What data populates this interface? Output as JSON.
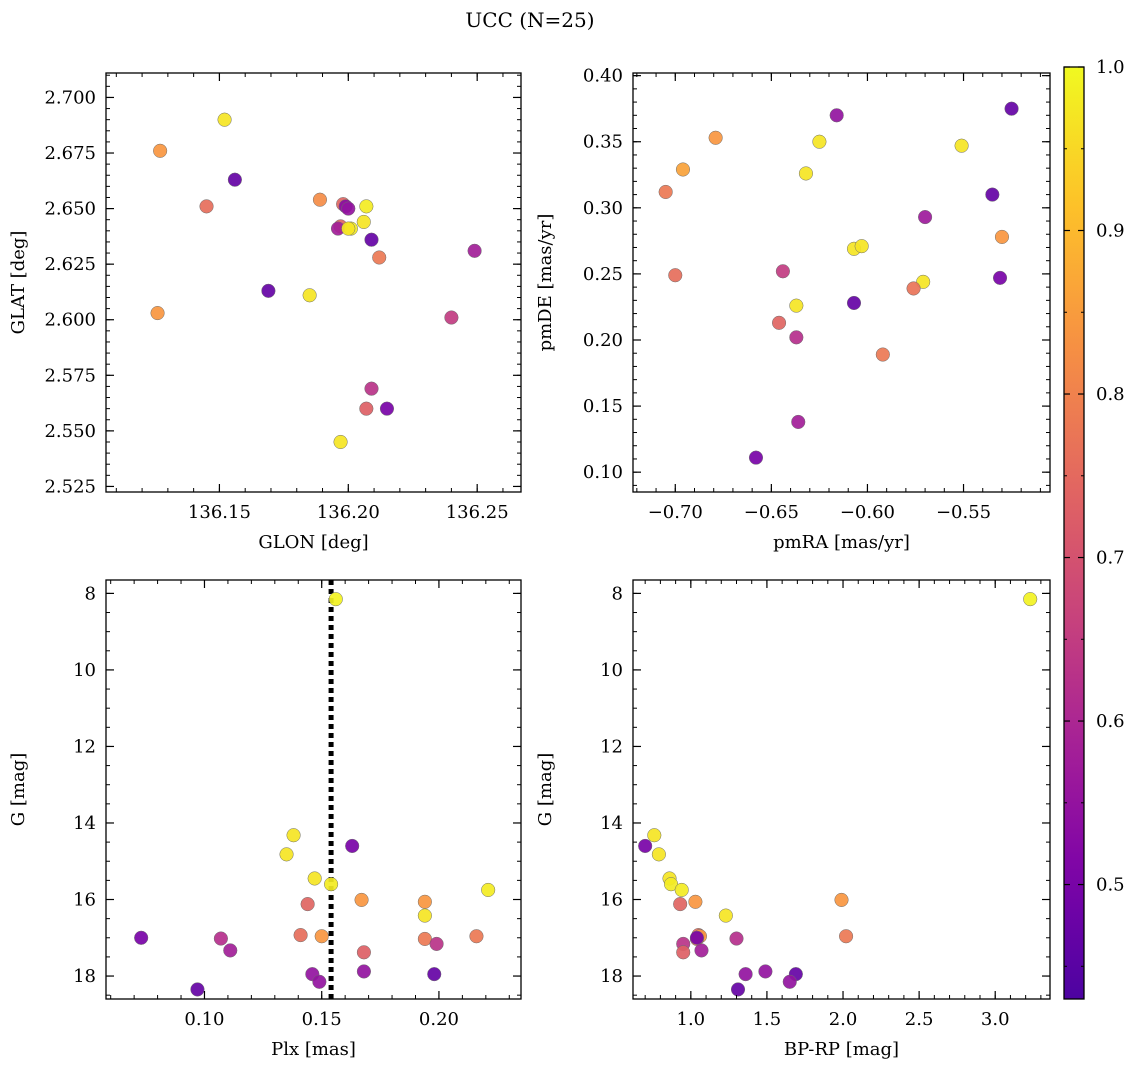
{
  "title": "UCC (N=25)",
  "chart_data": [
    {
      "type": "scatter",
      "xlabel": "GLON [deg]",
      "ylabel": "GLAT [deg]",
      "xlim": [
        136.106,
        136.267
      ],
      "ylim": [
        2.5225,
        2.711
      ],
      "xticks": [
        136.15,
        136.2,
        136.25
      ],
      "yticks": [
        2.525,
        2.55,
        2.575,
        2.6,
        2.625,
        2.65,
        2.675,
        2.7
      ],
      "xtick_decimals": 2,
      "ytick_decimals": 3,
      "invert_y": false,
      "points": [
        {
          "x": 136.127,
          "y": 2.676,
          "c": 0.84
        },
        {
          "x": 136.152,
          "y": 2.69,
          "c": 0.97
        },
        {
          "x": 136.156,
          "y": 2.663,
          "c": 0.47
        },
        {
          "x": 136.145,
          "y": 2.651,
          "c": 0.76
        },
        {
          "x": 136.126,
          "y": 2.603,
          "c": 0.84
        },
        {
          "x": 136.169,
          "y": 2.613,
          "c": 0.47
        },
        {
          "x": 136.185,
          "y": 2.611,
          "c": 0.97
        },
        {
          "x": 136.189,
          "y": 2.654,
          "c": 0.82
        },
        {
          "x": 136.198,
          "y": 2.652,
          "c": 0.74
        },
        {
          "x": 136.197,
          "y": 2.642,
          "c": 0.74
        },
        {
          "x": 136.196,
          "y": 2.641,
          "c": 0.58
        },
        {
          "x": 136.199,
          "y": 2.651,
          "c": 0.53
        },
        {
          "x": 136.201,
          "y": 2.641,
          "c": 0.98
        },
        {
          "x": 136.206,
          "y": 2.644,
          "c": 0.97
        },
        {
          "x": 136.207,
          "y": 2.651,
          "c": 0.98
        },
        {
          "x": 136.209,
          "y": 2.636,
          "c": 0.47
        },
        {
          "x": 136.212,
          "y": 2.628,
          "c": 0.78
        },
        {
          "x": 136.249,
          "y": 2.631,
          "c": 0.58
        },
        {
          "x": 136.24,
          "y": 2.601,
          "c": 0.65
        },
        {
          "x": 136.209,
          "y": 2.569,
          "c": 0.63
        },
        {
          "x": 136.207,
          "y": 2.56,
          "c": 0.73
        },
        {
          "x": 136.215,
          "y": 2.56,
          "c": 0.5
        },
        {
          "x": 136.197,
          "y": 2.545,
          "c": 0.97
        },
        {
          "x": 136.2,
          "y": 2.641,
          "c": 0.97
        },
        {
          "x": 136.2,
          "y": 2.65,
          "c": 0.55
        }
      ]
    },
    {
      "type": "scatter",
      "xlabel": "pmRA [mas/yr]",
      "ylabel": "pmDE [mas/yr]",
      "xlim": [
        -0.722,
        -0.505
      ],
      "ylim": [
        0.085,
        0.402
      ],
      "xticks": [
        -0.7,
        -0.65,
        -0.6,
        -0.55
      ],
      "yticks": [
        0.1,
        0.15,
        0.2,
        0.25,
        0.3,
        0.35,
        0.4
      ],
      "xtick_decimals": 2,
      "ytick_decimals": 2,
      "invert_y": false,
      "points": [
        {
          "x": -0.679,
          "y": 0.353,
          "c": 0.84
        },
        {
          "x": -0.696,
          "y": 0.329,
          "c": 0.86
        },
        {
          "x": -0.705,
          "y": 0.312,
          "c": 0.78
        },
        {
          "x": -0.7,
          "y": 0.249,
          "c": 0.76
        },
        {
          "x": -0.616,
          "y": 0.37,
          "c": 0.55
        },
        {
          "x": -0.625,
          "y": 0.35,
          "c": 0.97
        },
        {
          "x": -0.632,
          "y": 0.326,
          "c": 0.97
        },
        {
          "x": -0.551,
          "y": 0.347,
          "c": 0.97
        },
        {
          "x": -0.525,
          "y": 0.375,
          "c": 0.47
        },
        {
          "x": -0.535,
          "y": 0.31,
          "c": 0.47
        },
        {
          "x": -0.57,
          "y": 0.293,
          "c": 0.57
        },
        {
          "x": -0.53,
          "y": 0.278,
          "c": 0.84
        },
        {
          "x": -0.531,
          "y": 0.247,
          "c": 0.5
        },
        {
          "x": -0.571,
          "y": 0.244,
          "c": 0.97
        },
        {
          "x": -0.576,
          "y": 0.239,
          "c": 0.77
        },
        {
          "x": -0.607,
          "y": 0.269,
          "c": 0.97
        },
        {
          "x": -0.603,
          "y": 0.271,
          "c": 0.97
        },
        {
          "x": -0.644,
          "y": 0.252,
          "c": 0.65
        },
        {
          "x": -0.637,
          "y": 0.226,
          "c": 0.97
        },
        {
          "x": -0.607,
          "y": 0.228,
          "c": 0.47
        },
        {
          "x": -0.646,
          "y": 0.213,
          "c": 0.74
        },
        {
          "x": -0.637,
          "y": 0.202,
          "c": 0.62
        },
        {
          "x": -0.592,
          "y": 0.189,
          "c": 0.78
        },
        {
          "x": -0.636,
          "y": 0.138,
          "c": 0.58
        },
        {
          "x": -0.658,
          "y": 0.111,
          "c": 0.5
        }
      ]
    },
    {
      "type": "scatter",
      "xlabel": "Plx [mas]",
      "ylabel": "G [mag]",
      "xlim": [
        0.058,
        0.235
      ],
      "ylim": [
        7.65,
        18.6
      ],
      "xticks": [
        0.1,
        0.15,
        0.2
      ],
      "yticks": [
        8,
        10,
        12,
        14,
        16,
        18
      ],
      "xtick_decimals": 2,
      "ytick_decimals": 0,
      "invert_y": true,
      "vline": 0.154,
      "points": [
        {
          "x": 0.156,
          "y": 8.15,
          "c": 0.99
        },
        {
          "x": 0.138,
          "y": 14.32,
          "c": 0.97
        },
        {
          "x": 0.135,
          "y": 14.82,
          "c": 0.97
        },
        {
          "x": 0.163,
          "y": 14.6,
          "c": 0.5
        },
        {
          "x": 0.147,
          "y": 15.45,
          "c": 0.97
        },
        {
          "x": 0.154,
          "y": 15.6,
          "c": 0.98
        },
        {
          "x": 0.221,
          "y": 15.75,
          "c": 0.98
        },
        {
          "x": 0.167,
          "y": 16.01,
          "c": 0.84
        },
        {
          "x": 0.194,
          "y": 16.06,
          "c": 0.84
        },
        {
          "x": 0.144,
          "y": 16.12,
          "c": 0.74
        },
        {
          "x": 0.194,
          "y": 16.42,
          "c": 0.97
        },
        {
          "x": 0.141,
          "y": 16.93,
          "c": 0.76
        },
        {
          "x": 0.15,
          "y": 16.96,
          "c": 0.84
        },
        {
          "x": 0.216,
          "y": 16.96,
          "c": 0.78
        },
        {
          "x": 0.194,
          "y": 17.03,
          "c": 0.78
        },
        {
          "x": 0.073,
          "y": 17.0,
          "c": 0.5
        },
        {
          "x": 0.107,
          "y": 17.02,
          "c": 0.62
        },
        {
          "x": 0.199,
          "y": 17.16,
          "c": 0.63
        },
        {
          "x": 0.111,
          "y": 17.33,
          "c": 0.58
        },
        {
          "x": 0.168,
          "y": 17.38,
          "c": 0.73
        },
        {
          "x": 0.168,
          "y": 17.88,
          "c": 0.55
        },
        {
          "x": 0.146,
          "y": 17.95,
          "c": 0.55
        },
        {
          "x": 0.198,
          "y": 17.95,
          "c": 0.47
        },
        {
          "x": 0.149,
          "y": 18.15,
          "c": 0.55
        },
        {
          "x": 0.097,
          "y": 18.35,
          "c": 0.47
        }
      ]
    },
    {
      "type": "scatter",
      "xlabel": "BP-RP [mag]",
      "ylabel": "G [mag]",
      "xlim": [
        0.62,
        3.36
      ],
      "ylim": [
        7.65,
        18.6
      ],
      "xticks": [
        1.0,
        1.5,
        2.0,
        2.5,
        3.0
      ],
      "yticks": [
        8,
        10,
        12,
        14,
        16,
        18
      ],
      "xtick_decimals": 1,
      "ytick_decimals": 0,
      "invert_y": true,
      "points": [
        {
          "x": 3.23,
          "y": 8.15,
          "c": 0.99
        },
        {
          "x": 0.76,
          "y": 14.32,
          "c": 0.97
        },
        {
          "x": 0.79,
          "y": 14.82,
          "c": 0.97
        },
        {
          "x": 0.7,
          "y": 14.6,
          "c": 0.5
        },
        {
          "x": 0.86,
          "y": 15.45,
          "c": 0.97
        },
        {
          "x": 0.87,
          "y": 15.6,
          "c": 0.98
        },
        {
          "x": 0.94,
          "y": 15.75,
          "c": 0.98
        },
        {
          "x": 1.99,
          "y": 16.01,
          "c": 0.84
        },
        {
          "x": 1.03,
          "y": 16.06,
          "c": 0.84
        },
        {
          "x": 0.93,
          "y": 16.12,
          "c": 0.74
        },
        {
          "x": 1.23,
          "y": 16.42,
          "c": 0.97
        },
        {
          "x": 1.05,
          "y": 16.93,
          "c": 0.76
        },
        {
          "x": 1.06,
          "y": 16.96,
          "c": 0.84
        },
        {
          "x": 2.02,
          "y": 16.96,
          "c": 0.78
        },
        {
          "x": 1.04,
          "y": 17.03,
          "c": 0.78
        },
        {
          "x": 1.04,
          "y": 17.0,
          "c": 0.5
        },
        {
          "x": 1.3,
          "y": 17.02,
          "c": 0.62
        },
        {
          "x": 0.95,
          "y": 17.16,
          "c": 0.63
        },
        {
          "x": 1.07,
          "y": 17.33,
          "c": 0.58
        },
        {
          "x": 0.95,
          "y": 17.38,
          "c": 0.73
        },
        {
          "x": 1.49,
          "y": 17.88,
          "c": 0.55
        },
        {
          "x": 1.36,
          "y": 17.95,
          "c": 0.55
        },
        {
          "x": 1.69,
          "y": 17.95,
          "c": 0.47
        },
        {
          "x": 1.65,
          "y": 18.15,
          "c": 0.55
        },
        {
          "x": 1.31,
          "y": 18.35,
          "c": 0.47
        }
      ]
    }
  ],
  "colorbar": {
    "colormap": "plasma",
    "range": [
      0.43,
      1.0
    ],
    "ticks": [
      0.5,
      0.6,
      0.7,
      0.8,
      0.9,
      1.0
    ]
  }
}
